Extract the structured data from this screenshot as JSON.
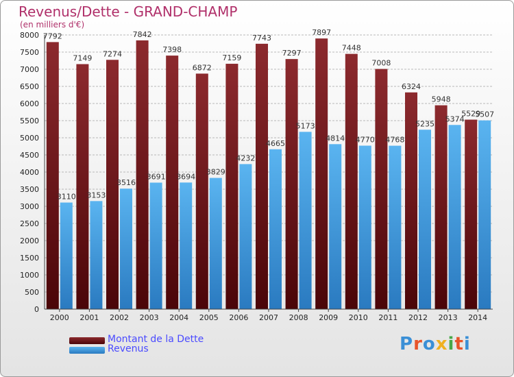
{
  "chart_data": {
    "type": "bar",
    "title": "Revenus/Dette - GRAND-CHAMP",
    "subtitle": "(en milliers d'€)",
    "categories": [
      "2000",
      "2001",
      "2002",
      "2003",
      "2004",
      "2005",
      "2006",
      "2007",
      "2008",
      "2009",
      "2010",
      "2011",
      "2012",
      "2013",
      "2014"
    ],
    "series": [
      {
        "name": "Montant de la Dette",
        "color": "#7a1a1e",
        "values": [
          7792,
          7149,
          7274,
          7842,
          7398,
          6872,
          7159,
          7743,
          7297,
          7897,
          7448,
          7008,
          6324,
          5948,
          5529
        ]
      },
      {
        "name": "Revenus",
        "color": "#4aa3e6",
        "values": [
          3110,
          3153,
          3516,
          3691,
          3694,
          3829,
          4232,
          4665,
          5173,
          4814,
          4770,
          4768,
          5235,
          5374,
          5507
        ]
      }
    ],
    "ylim": [
      0,
      8000
    ],
    "yticks": [
      0,
      500,
      1000,
      1500,
      2000,
      2500,
      3000,
      3500,
      4000,
      4500,
      5000,
      5500,
      6000,
      6500,
      7000,
      7500,
      8000
    ],
    "grid": true,
    "legend_position": "bottom-left"
  },
  "logo": {
    "text": "Proxiti",
    "colors": [
      "#3a8fd6",
      "#e8542a",
      "#3a8fd6",
      "#f0b020",
      "#48a848",
      "#e8542a",
      "#3a8fd6"
    ]
  }
}
